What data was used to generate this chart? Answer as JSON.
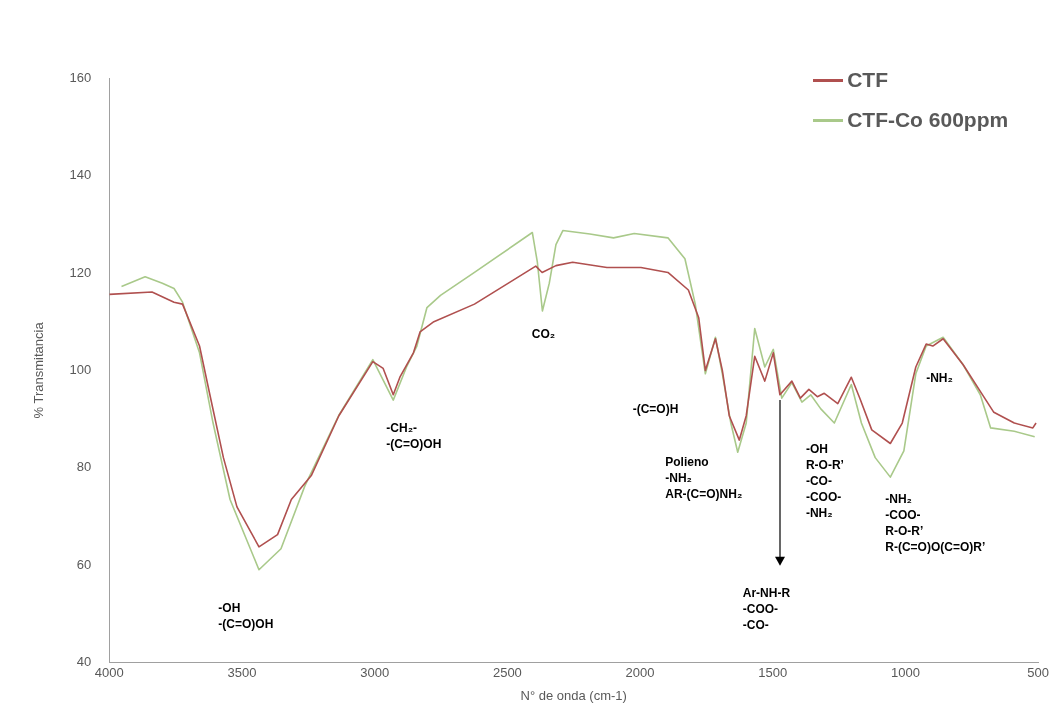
{
  "chart_data": {
    "type": "line",
    "xlabel": "N° de onda (cm-1)",
    "ylabel": "% Transmitancia",
    "xlim": [
      4000,
      500
    ],
    "xticks": [
      4000,
      3500,
      3000,
      2500,
      2000,
      1500,
      1000,
      500
    ],
    "ylim": [
      40,
      160
    ],
    "yticks": [
      40,
      60,
      80,
      100,
      120,
      140,
      160
    ],
    "grid": false,
    "legend": "top right",
    "marker": "none",
    "line_style": "solid",
    "series": [
      {
        "name": "CTF",
        "color": "#b0504f",
        "x": [
          4000,
          3839,
          3756,
          3724,
          3660,
          3621,
          3570,
          3519,
          3436,
          3366,
          3314,
          3238,
          3135,
          3007,
          2968,
          2930,
          2905,
          2854,
          2829,
          2777,
          2624,
          2393,
          2369,
          2317,
          2254,
          2125,
          1997,
          1895,
          1818,
          1779,
          1754,
          1716,
          1690,
          1664,
          1626,
          1600,
          1568,
          1530,
          1498,
          1473,
          1428,
          1396,
          1364,
          1332,
          1306,
          1255,
          1204,
          1172,
          1127,
          1057,
          1012,
          961,
          922,
          897,
          858,
          782,
          718,
          667,
          590,
          520,
          508
        ],
        "values": [
          115.6,
          116.1,
          114.0,
          113.6,
          105.0,
          95.0,
          82.1,
          72.0,
          63.8,
          66.3,
          73.5,
          78.5,
          90.7,
          101.8,
          100.4,
          95.0,
          98.6,
          103.6,
          107.9,
          110.0,
          113.6,
          121.4,
          120.1,
          121.5,
          122.2,
          121.1,
          121.1,
          120.1,
          116.5,
          110.8,
          100.0,
          106.5,
          100.0,
          90.7,
          85.7,
          90.7,
          102.9,
          97.8,
          103.6,
          95.0,
          97.8,
          94.3,
          96.1,
          94.6,
          95.3,
          93.2,
          98.6,
          94.3,
          87.8,
          85.0,
          89.2,
          100.7,
          105.4,
          105.0,
          106.5,
          101.1,
          95.7,
          91.4,
          89.2,
          88.2,
          89.2
        ]
      },
      {
        "name": "CTF-Co 600ppm",
        "color": "#a9c98a",
        "x": [
          3954,
          3865,
          3800,
          3756,
          3724,
          3660,
          3609,
          3545,
          3436,
          3353,
          3263,
          3136,
          3007,
          2930,
          2880,
          2841,
          2803,
          2752,
          2624,
          2406,
          2387,
          2368,
          2342,
          2317,
          2291,
          2189,
          2100,
          2022,
          1895,
          1831,
          1792,
          1754,
          1716,
          1690,
          1658,
          1632,
          1600,
          1568,
          1530,
          1498,
          1466,
          1428,
          1390,
          1357,
          1319,
          1268,
          1204,
          1166,
          1114,
          1057,
          1006,
          961,
          922,
          858,
          782,
          718,
          679,
          590,
          513
        ],
        "values": [
          117.2,
          119.2,
          117.9,
          116.8,
          114.0,
          103.6,
          89.2,
          73.5,
          59.1,
          63.4,
          76.3,
          90.7,
          102.2,
          93.9,
          100.7,
          105.0,
          112.9,
          115.4,
          120.1,
          128.3,
          122.2,
          112.2,
          117.9,
          125.8,
          128.7,
          128.0,
          127.2,
          128.1,
          127.2,
          122.9,
          113.6,
          99.3,
          106.8,
          99.3,
          89.2,
          83.2,
          89.2,
          108.6,
          100.7,
          104.3,
          94.3,
          97.5,
          93.5,
          95.0,
          92.1,
          89.2,
          97.1,
          89.2,
          82.1,
          78.1,
          83.5,
          99.3,
          105.0,
          106.8,
          101.1,
          95.0,
          88.2,
          87.5,
          86.4
        ]
      }
    ],
    "annotations": [
      "-OH\n-(C=O)OH",
      "-CH₂-\n-(C=O)OH",
      "CO₂",
      "-(C=O)H",
      "Polieno\n-NH₂\nAR-(C=O)NH₂",
      "Ar-NH-R\n-COO-\n-CO-",
      "-OH\nR-O-R’\n-CO-\n-COO-\n-NH₂",
      "-NH₂\n-COO-\nR-O-R’\nR-(C=O)O(C=O)R’",
      "-NH₂"
    ]
  }
}
